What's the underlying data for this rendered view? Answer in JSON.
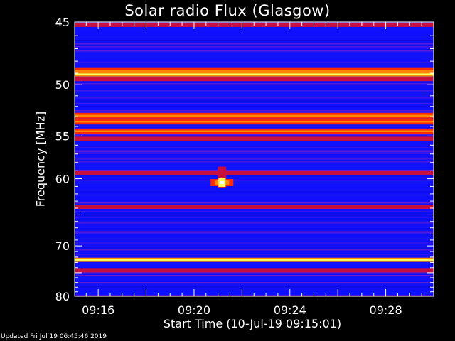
{
  "chart_data": {
    "type": "heatmap",
    "title": "Solar radio Flux (Glasgow)",
    "ylabel": "Frequency [MHz]",
    "xlabel": "Start Time (10-Jul-19 09:15:01)",
    "footer": "Updated Fri Jul 19 06:45:46 2019",
    "y_axis": {
      "ylim": [
        45,
        80
      ],
      "ticks": [
        45,
        50,
        55,
        60,
        70,
        80
      ],
      "scale": "reciprocal"
    },
    "x_axis": {
      "start": "09:15:01",
      "end": "09:30:00",
      "ticks": [
        "09:16",
        "09:20",
        "09:24",
        "09:28"
      ]
    },
    "colormap": [
      "#000033",
      "#1010ff",
      "#7a20c8",
      "#c81040",
      "#ff2a00",
      "#ff8800",
      "#ffff60",
      "#ffffff"
    ],
    "background_intensity": "low (blue)",
    "horizontal_bands": [
      {
        "freq_mhz": 45.2,
        "intensity": "medium"
      },
      {
        "freq_mhz": 48.8,
        "intensity": "high"
      },
      {
        "freq_mhz": 49.1,
        "intensity": "very high"
      },
      {
        "freq_mhz": 49.5,
        "intensity": "medium"
      },
      {
        "freq_mhz": 52.9,
        "intensity": "high"
      },
      {
        "freq_mhz": 53.5,
        "intensity": "high"
      },
      {
        "freq_mhz": 54.5,
        "intensity": "high"
      },
      {
        "freq_mhz": 55.3,
        "intensity": "medium"
      },
      {
        "freq_mhz": 59.3,
        "intensity": "medium"
      },
      {
        "freq_mhz": 63.8,
        "intensity": "medium"
      },
      {
        "freq_mhz": 72.5,
        "intensity": "very high"
      },
      {
        "freq_mhz": 74.5,
        "intensity": "medium"
      }
    ],
    "burst": {
      "time": "09:21:10",
      "freq_mhz": [
        58.5,
        61.2
      ],
      "peak_freq_mhz": 60.5,
      "intensity": "very high"
    }
  }
}
